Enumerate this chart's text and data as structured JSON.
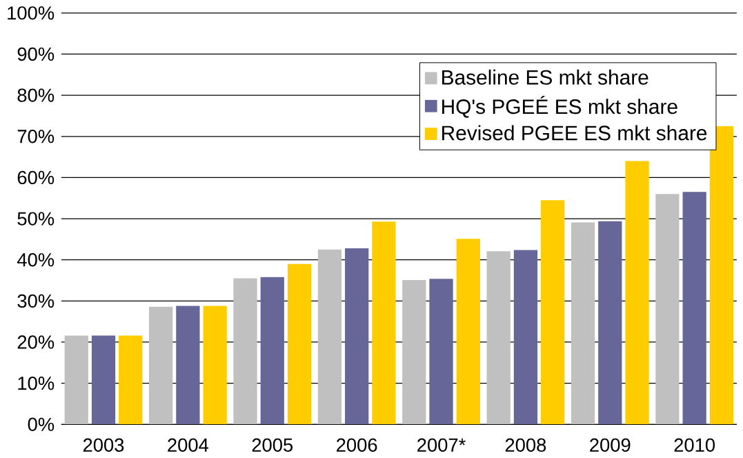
{
  "chart_data": {
    "type": "bar",
    "categories": [
      "2003",
      "2004",
      "2005",
      "2006",
      "2007*",
      "2008",
      "2009",
      "2010"
    ],
    "series": [
      {
        "name": "Baseline ES mkt share",
        "color": "#c0c0c0",
        "values": [
          21.6,
          28.6,
          35.5,
          42.5,
          35.1,
          42.1,
          49.1,
          56.0
        ]
      },
      {
        "name": "HQ's PGEÉ ES mkt share",
        "color": "#666699",
        "values": [
          21.6,
          28.8,
          35.8,
          42.8,
          35.4,
          42.4,
          49.4,
          56.5
        ]
      },
      {
        "name": "Revised PGEE ES mkt share",
        "color": "#ffcc00",
        "values": [
          21.6,
          28.8,
          39.0,
          49.3,
          45.1,
          54.5,
          64.0,
          72.5
        ]
      }
    ],
    "ylim": [
      0,
      100
    ],
    "yticks": [
      {
        "value": 0,
        "label": "0%"
      },
      {
        "value": 10,
        "label": "10%"
      },
      {
        "value": 20,
        "label": "20%"
      },
      {
        "value": 30,
        "label": "30%"
      },
      {
        "value": 40,
        "label": "40%"
      },
      {
        "value": 50,
        "label": "50%"
      },
      {
        "value": 60,
        "label": "60%"
      },
      {
        "value": 70,
        "label": "70%"
      },
      {
        "value": 80,
        "label": "80%"
      },
      {
        "value": 90,
        "label": "90%"
      },
      {
        "value": 100,
        "label": "100%"
      }
    ],
    "grid": "y",
    "legend": "top right"
  }
}
